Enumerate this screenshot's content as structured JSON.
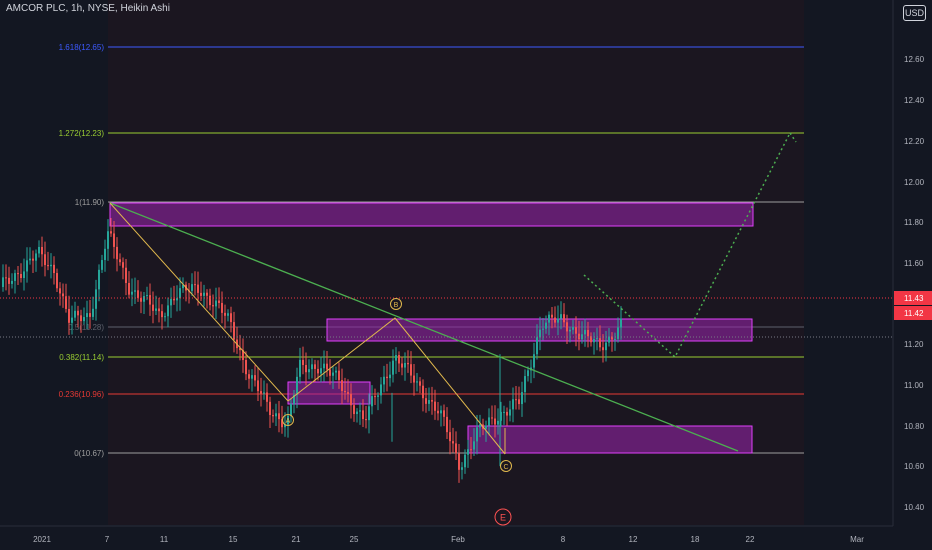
{
  "header": {
    "symbol_title": "AMCOR PLC, 1h, NYSE, Heikin Ashi",
    "currency_button": "USD"
  },
  "price_axis": {
    "ticks": [
      "12.60",
      "12.40",
      "12.20",
      "12.00",
      "11.80",
      "11.60",
      "11.20",
      "11.00",
      "10.80",
      "10.60",
      "10.40"
    ],
    "last_price_labels": [
      {
        "text": "11.43",
        "color": "#f23645"
      },
      {
        "text": "11.42",
        "color": "#f23645"
      }
    ]
  },
  "time_axis": {
    "ticks": [
      "2021",
      "7",
      "11",
      "15",
      "21",
      "25",
      "Feb",
      "8",
      "12",
      "18",
      "22",
      "Mar"
    ]
  },
  "fib_levels": [
    {
      "label": "1.618(12.65)",
      "value": 12.65,
      "color": "#3d5afe"
    },
    {
      "label": "1.272(12.23)",
      "value": 12.23,
      "color": "#9acd32"
    },
    {
      "label": "1(11.90)",
      "value": 11.9,
      "color": "#9e9e9e"
    },
    {
      "label": "0.5(11.28)",
      "value": 11.28,
      "color": "#5d606b"
    },
    {
      "label": "0.382(11.14)",
      "value": 11.14,
      "color": "#9acd32"
    },
    {
      "label": "0.236(10.96)",
      "value": 10.96,
      "color": "#e53935"
    },
    {
      "label": "0(10.67)",
      "value": 10.67,
      "color": "#9e9e9e"
    }
  ],
  "wave_labels": [
    "A",
    "B",
    "C",
    "E"
  ],
  "colors": {
    "background": "#131722",
    "up_candle": "#26a69a",
    "down_candle": "#ef5350",
    "zone": "#e040fb",
    "trendline": "#4caf50",
    "projection": "#4caf50",
    "wave": "#e0b84d",
    "wave_e": "#ff5252"
  }
}
